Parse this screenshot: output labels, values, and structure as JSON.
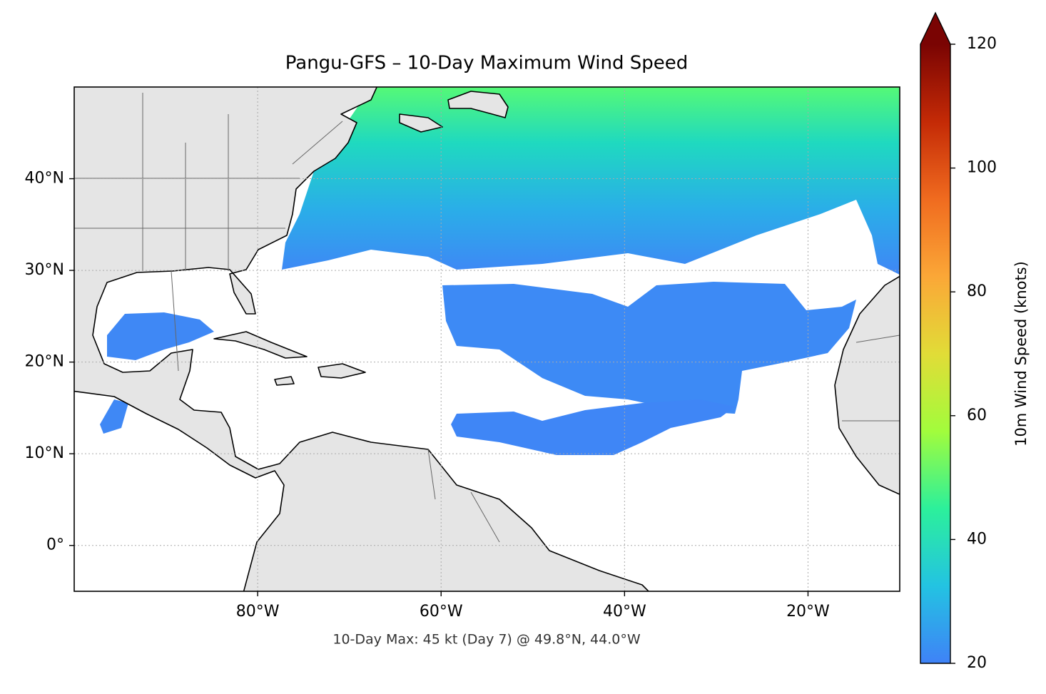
{
  "chart_data": {
    "type": "map",
    "title": "Pangu-GFS – 10-Day Maximum Wind Speed",
    "annotation": "10-Day Max: 45 kt (Day 7) @ 49.8°N, 44.0°W",
    "xlim": [
      -100,
      -10
    ],
    "ylim": [
      -5,
      50
    ],
    "xticks": [
      {
        "value": -80,
        "label": "80°W"
      },
      {
        "value": -60,
        "label": "60°W"
      },
      {
        "value": -40,
        "label": "40°W"
      },
      {
        "value": -20,
        "label": "20°W"
      }
    ],
    "yticks": [
      {
        "value": 0,
        "label": "0°"
      },
      {
        "value": 10,
        "label": "10°N"
      },
      {
        "value": 20,
        "label": "20°N"
      },
      {
        "value": 30,
        "label": "30°N"
      },
      {
        "value": 40,
        "label": "40°N"
      }
    ],
    "grid": true,
    "colorbar": {
      "label": "10m Wind Speed (knots)",
      "lim": [
        20,
        120
      ],
      "ticks": [
        20,
        40,
        60,
        80,
        100,
        120
      ],
      "extend": "max",
      "colors": [
        "#3f82f7",
        "#23c3e2",
        "#2cf09b",
        "#a2fc3c",
        "#e1dc37",
        "#fba737",
        "#f06b1f",
        "#c42a06",
        "#7a0403"
      ]
    }
  }
}
